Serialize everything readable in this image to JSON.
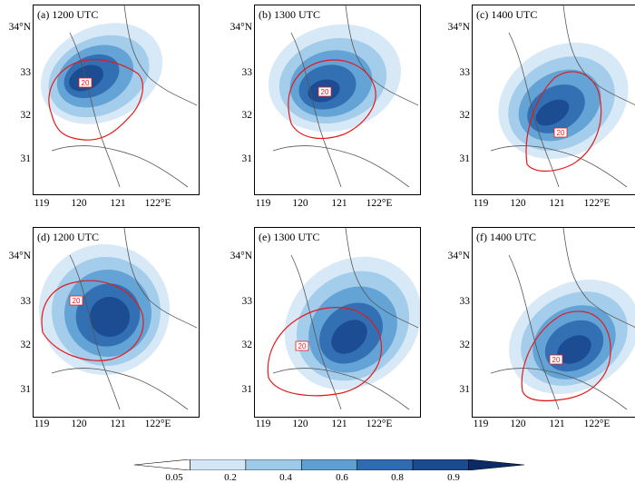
{
  "panels": [
    {
      "label": "(a) 1200 UTC"
    },
    {
      "label": "(b) 1300 UTC"
    },
    {
      "label": "(c) 1400 UTC"
    },
    {
      "label": "(d) 1200 UTC"
    },
    {
      "label": "(e) 1300 UTC"
    },
    {
      "label": "(f) 1400 UTC"
    }
  ],
  "y_ticks": [
    "34°N",
    "33",
    "32",
    "31"
  ],
  "x_ticks": [
    "119",
    "120",
    "121",
    "122°E"
  ],
  "contour_label": "20",
  "colorbar": {
    "labels": [
      "0.05",
      "0.2",
      "0.4",
      "0.6",
      "0.8",
      "0.9"
    ],
    "colors": [
      "#ffffff",
      "#d4e7f6",
      "#9ecae9",
      "#5d9fd3",
      "#2f6bb0",
      "#1a4a90",
      "#0b2a66"
    ]
  },
  "colors": {
    "contour": "#e31a1c",
    "coast": "#555555"
  }
}
